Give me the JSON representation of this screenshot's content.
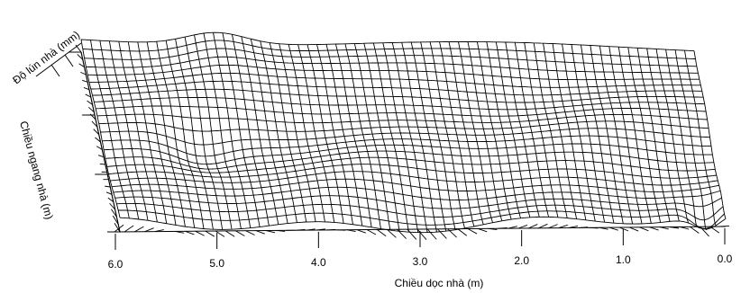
{
  "chart_data": {
    "type": "surface",
    "title": "",
    "xlabel": "Chiều dọc nhà (m)",
    "ylabel": "Chiều ngang nhà (m)",
    "zlabel": "Độ lún nhà (mm)",
    "x_ticks": [
      "6.0",
      "5.0",
      "4.0",
      "3.0",
      "2.0",
      "1.0",
      "0.0"
    ],
    "x_range": [
      0.0,
      6.0
    ],
    "x_direction": "decreasing-left-to-right",
    "grid_columns": 65,
    "grid_rows": 24,
    "surface_features": [
      "bump along back edge near x = 4.8 to 5.5",
      "depression near front-left between x = 4.6 and 5.3",
      "steep drop at front-right corner near x = 0.0 to 0.3"
    ]
  }
}
